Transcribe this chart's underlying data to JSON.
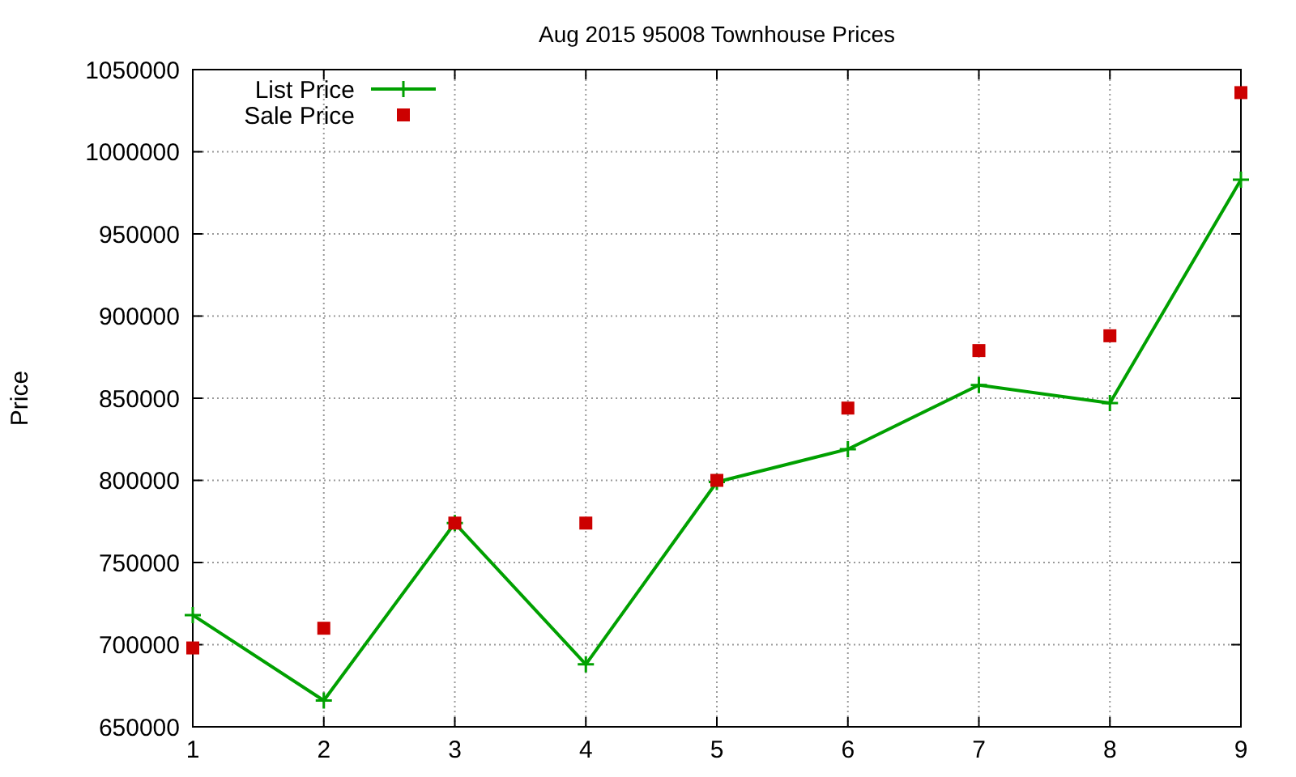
{
  "chart_data": {
    "type": "line",
    "title": "Aug 2015 95008 Townhouse Prices",
    "ylabel": "Price",
    "x": [
      1,
      2,
      3,
      4,
      5,
      6,
      7,
      8,
      9
    ],
    "series": [
      {
        "name": "List Price",
        "color": "#00a000",
        "marker": "cross",
        "values": [
          718000,
          666000,
          774000,
          688000,
          799000,
          819000,
          858000,
          847000,
          983000
        ]
      },
      {
        "name": "Sale Price",
        "type": "scatter",
        "color": "#cc0000",
        "marker": "square",
        "values": [
          698000,
          710000,
          774000,
          774000,
          800000,
          844000,
          879000,
          888000,
          1036000
        ]
      }
    ],
    "xlim": [
      1,
      9
    ],
    "xticks": [
      1,
      2,
      3,
      4,
      5,
      6,
      7,
      8,
      9
    ],
    "ylim": [
      650000,
      1050000
    ],
    "yticks": [
      650000,
      700000,
      750000,
      800000,
      850000,
      900000,
      950000,
      1000000,
      1050000
    ],
    "grid": true,
    "legend": "top left",
    "line_style": "solid"
  }
}
